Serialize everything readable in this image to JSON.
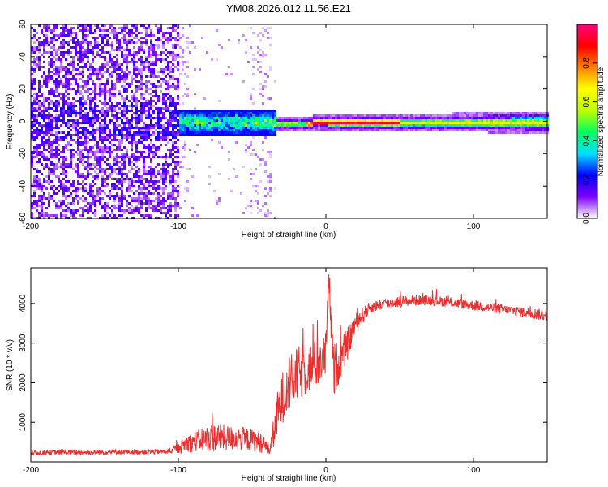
{
  "page_title": "YM08.2026.012.11.56.E21",
  "chart_data": [
    {
      "type": "heatmap",
      "title": "YM08.2026.012.11.56.E21",
      "xlabel": "Height of straight line (km)",
      "ylabel": "Frequency (Hz)",
      "xlim": [
        -200,
        150
      ],
      "ylim": [
        -60,
        60
      ],
      "x_ticks": [
        -200,
        -100,
        0,
        100
      ],
      "x_tick_labels": [
        "-200",
        "-100",
        "0",
        "100"
      ],
      "y_ticks": [
        -60,
        -40,
        -20,
        0,
        20,
        40,
        60
      ],
      "y_tick_labels": [
        "-60",
        "-40",
        "-20",
        "0",
        "20",
        "40",
        "60"
      ],
      "colorbar": {
        "label": "Normalized spectral amplitude",
        "range": [
          0,
          1
        ],
        "ticks": [
          0.0,
          0.2,
          0.4,
          0.6,
          0.8
        ],
        "tick_labels": [
          "0.0",
          "0.2",
          "0.4",
          "0.6",
          "0.8"
        ],
        "colormap": [
          "#ffffff",
          "#7f00ff",
          "#0000ff",
          "#00e0ff",
          "#00ff60",
          "#c0ff00",
          "#ffff00",
          "#ff8000",
          "#ff0000",
          "#ff0080"
        ]
      },
      "regions": [
        {
          "x_range": [
            -200,
            -100
          ],
          "description_value": "broadband noise",
          "freq_span": [
            -60,
            60
          ],
          "amplitude": 0.15
        },
        {
          "x_range": [
            -100,
            -35
          ],
          "freq_span": [
            -8,
            8
          ],
          "amplitude": 0.3
        },
        {
          "x_range": [
            -35,
            150
          ],
          "freq_span": [
            -3,
            3
          ],
          "amplitude": 0.9
        }
      ]
    },
    {
      "type": "line",
      "xlabel": "Height of straight line (km)",
      "ylabel": "SNR (10 * v/v)",
      "xlim": [
        -200,
        150
      ],
      "ylim": [
        0,
        4900
      ],
      "x_ticks": [
        -200,
        -100,
        0,
        100
      ],
      "x_tick_labels": [
        "-200",
        "-100",
        "0",
        "100"
      ],
      "y_ticks": [
        1000,
        2000,
        3000,
        4000
      ],
      "y_tick_labels": [
        "1000",
        "2000",
        "3000",
        "4000"
      ],
      "line_color": "#e8312f",
      "series": [
        {
          "name": "SNR",
          "x": [
            -200,
            -180,
            -160,
            -140,
            -120,
            -105,
            -95,
            -85,
            -75,
            -65,
            -55,
            -45,
            -38,
            -33,
            -28,
            -22,
            -16,
            -10,
            -5,
            0,
            2,
            5,
            10,
            15,
            20,
            30,
            40,
            50,
            60,
            70,
            80,
            90,
            100,
            110,
            120,
            130,
            140,
            150
          ],
          "y": [
            230,
            240,
            240,
            250,
            250,
            270,
            450,
            560,
            620,
            600,
            580,
            520,
            300,
            1150,
            1800,
            2100,
            2300,
            2400,
            2500,
            2700,
            4700,
            2300,
            2600,
            3000,
            3500,
            3900,
            4000,
            4050,
            4080,
            4080,
            4050,
            4000,
            3950,
            3900,
            3850,
            3800,
            3750,
            3700
          ],
          "noise": [
            60,
            60,
            60,
            60,
            60,
            70,
            220,
            300,
            380,
            320,
            300,
            280,
            150,
            600,
            700,
            700,
            700,
            650,
            600,
            600,
            300,
            700,
            500,
            400,
            250,
            150,
            140,
            140,
            130,
            130,
            130,
            130,
            130,
            130,
            130,
            130,
            140,
            150
          ]
        }
      ]
    }
  ]
}
